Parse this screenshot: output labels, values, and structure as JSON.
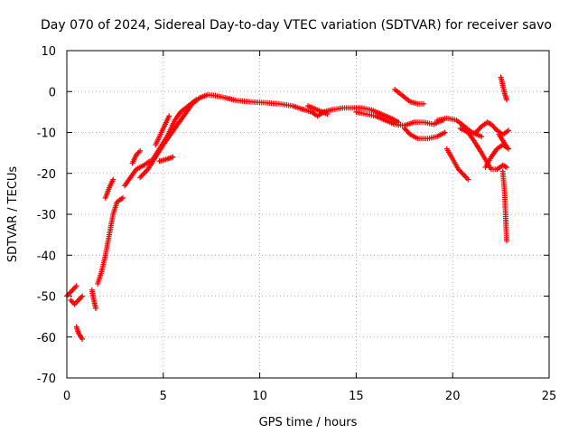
{
  "chart_data": {
    "type": "scatter",
    "title": "Day 070 of 2024, Sidereal Day-to-day VTEC variation (SDTVAR) for receiver savo",
    "xlabel": "GPS time / hours",
    "ylabel": "SDTVAR / TECUs",
    "xlim": [
      0,
      25
    ],
    "ylim": [
      -70,
      10
    ],
    "grid": true,
    "marker": "+",
    "x_ticks": [
      "0",
      "5",
      "10",
      "15",
      "20",
      "25"
    ],
    "y_ticks": [
      "10",
      "0",
      "-10",
      "-20",
      "-30",
      "-40",
      "-50",
      "-60",
      "-70"
    ],
    "series": [
      {
        "name": "SDTVAR",
        "color": "#ff0000",
        "arcs": [
          [
            [
              0.0,
              -50
            ],
            [
              0.3,
              -48.5
            ],
            [
              0.5,
              -47.5
            ]
          ],
          [
            [
              0.2,
              -51
            ],
            [
              0.4,
              -52
            ],
            [
              0.6,
              -51
            ],
            [
              0.8,
              -50
            ]
          ],
          [
            [
              0.5,
              -57.5
            ],
            [
              0.6,
              -59
            ],
            [
              0.8,
              -60.5
            ]
          ],
          [
            [
              1.3,
              -48.5
            ],
            [
              1.4,
              -51
            ],
            [
              1.5,
              -53
            ]
          ],
          [
            [
              1.6,
              -47
            ],
            [
              1.8,
              -44
            ],
            [
              2.0,
              -40
            ],
            [
              2.2,
              -35
            ],
            [
              2.4,
              -30
            ],
            [
              2.6,
              -27
            ],
            [
              2.9,
              -26
            ]
          ],
          [
            [
              2.0,
              -26
            ],
            [
              2.2,
              -23.5
            ],
            [
              2.4,
              -21.5
            ]
          ],
          [
            [
              3.0,
              -23
            ],
            [
              3.3,
              -21
            ],
            [
              3.6,
              -19
            ],
            [
              4.0,
              -18
            ],
            [
              4.3,
              -17
            ]
          ],
          [
            [
              3.4,
              -17.5
            ],
            [
              3.6,
              -15.5
            ],
            [
              3.8,
              -14.5
            ]
          ],
          [
            [
              3.8,
              -21
            ],
            [
              4.2,
              -19
            ],
            [
              4.6,
              -16
            ],
            [
              5.0,
              -13
            ],
            [
              5.3,
              -11
            ],
            [
              5.6,
              -9
            ],
            [
              5.9,
              -7
            ],
            [
              6.2,
              -5
            ],
            [
              6.5,
              -3
            ],
            [
              6.9,
              -1.5
            ],
            [
              7.3,
              -0.8
            ],
            [
              7.7,
              -1
            ],
            [
              8.2,
              -1.5
            ],
            [
              8.8,
              -2.2
            ],
            [
              9.5,
              -2.5
            ],
            [
              10.2,
              -2.7
            ],
            [
              11.0,
              -3
            ],
            [
              11.7,
              -3.5
            ],
            [
              12.2,
              -4.3
            ],
            [
              12.7,
              -5
            ],
            [
              13.0,
              -6
            ],
            [
              13.3,
              -5
            ],
            [
              13.7,
              -4.5
            ],
            [
              14.3,
              -4
            ],
            [
              14.8,
              -4
            ],
            [
              15.3,
              -4
            ],
            [
              15.8,
              -4.5
            ],
            [
              16.3,
              -5.5
            ],
            [
              16.8,
              -6.5
            ],
            [
              17.2,
              -7.5
            ]
          ],
          [
            [
              4.4,
              -17
            ],
            [
              4.8,
              -14
            ],
            [
              5.2,
              -11
            ],
            [
              5.6,
              -7
            ],
            [
              5.9,
              -5
            ],
            [
              6.3,
              -3.5
            ],
            [
              6.7,
              -2
            ]
          ],
          [
            [
              4.8,
              -17
            ],
            [
              5.2,
              -16.5
            ],
            [
              5.5,
              -16
            ]
          ],
          [
            [
              4.6,
              -13
            ],
            [
              4.9,
              -10
            ],
            [
              5.3,
              -6
            ]
          ],
          [
            [
              12.5,
              -3.5
            ],
            [
              13.0,
              -4.5
            ],
            [
              13.5,
              -5.5
            ]
          ],
          [
            [
              15.0,
              -5
            ],
            [
              15.5,
              -5.5
            ],
            [
              16.0,
              -6
            ],
            [
              16.5,
              -7
            ],
            [
              17.0,
              -8
            ],
            [
              17.5,
              -8.3
            ],
            [
              18.0,
              -7.5
            ],
            [
              18.5,
              -7.5
            ],
            [
              19.0,
              -8
            ],
            [
              19.5,
              -7
            ]
          ],
          [
            [
              17.0,
              0.5
            ],
            [
              17.4,
              -1
            ],
            [
              17.8,
              -2.5
            ],
            [
              18.2,
              -3
            ],
            [
              18.5,
              -3
            ]
          ],
          [
            [
              17.5,
              -9
            ],
            [
              17.8,
              -10.5
            ],
            [
              18.2,
              -11.5
            ],
            [
              18.7,
              -11.5
            ],
            [
              19.2,
              -11
            ],
            [
              19.6,
              -10
            ]
          ],
          [
            [
              19.2,
              -7
            ],
            [
              19.7,
              -6.5
            ],
            [
              20.2,
              -7
            ],
            [
              20.6,
              -8.5
            ],
            [
              21.0,
              -10
            ],
            [
              21.5,
              -11
            ]
          ],
          [
            [
              19.7,
              -14
            ],
            [
              20.0,
              -16.5
            ],
            [
              20.3,
              -19
            ],
            [
              20.6,
              -20.5
            ],
            [
              20.8,
              -21.5
            ]
          ],
          [
            [
              20.4,
              -9
            ],
            [
              20.8,
              -10
            ],
            [
              21.1,
              -12
            ],
            [
              21.5,
              -15
            ],
            [
              21.8,
              -17.5
            ],
            [
              22.0,
              -19
            ],
            [
              22.3,
              -19
            ],
            [
              22.6,
              -18
            ],
            [
              22.8,
              -18.5
            ]
          ],
          [
            [
              21.2,
              -10
            ],
            [
              21.5,
              -8.5
            ],
            [
              21.8,
              -7.5
            ],
            [
              22.0,
              -8
            ],
            [
              22.3,
              -9.5
            ],
            [
              22.6,
              -10.5
            ],
            [
              22.9,
              -9.5
            ]
          ],
          [
            [
              21.7,
              -18.5
            ],
            [
              22.0,
              -16
            ],
            [
              22.3,
              -14
            ],
            [
              22.6,
              -13
            ],
            [
              22.9,
              -14
            ]
          ],
          [
            [
              22.4,
              -10.5
            ],
            [
              22.6,
              -12
            ],
            [
              22.8,
              -13.5
            ]
          ],
          [
            [
              22.6,
              -19.5
            ],
            [
              22.7,
              -25
            ],
            [
              22.75,
              -31
            ],
            [
              22.8,
              -36.5
            ]
          ],
          [
            [
              22.5,
              3.5
            ],
            [
              22.6,
              1.5
            ],
            [
              22.7,
              -0.5
            ],
            [
              22.8,
              -2
            ]
          ]
        ]
      }
    ]
  }
}
